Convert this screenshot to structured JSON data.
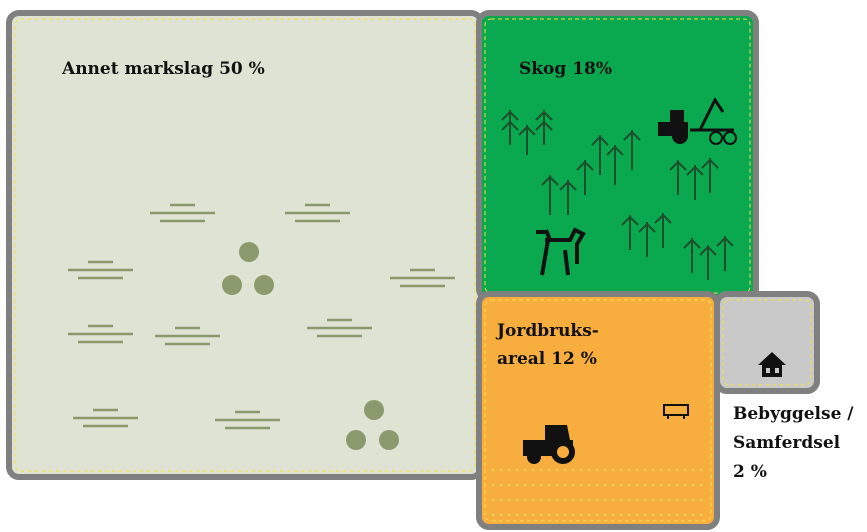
{
  "regions": [
    {
      "label_lines": [
        "Annet markslag 50 %"
      ]
    },
    {
      "label_lines": [
        "Skog 18%"
      ]
    },
    {
      "label_lines": [
        "Jordbruks-",
        "areal 12 %"
      ]
    },
    {
      "label_lines": [
        "Bebyggelse /",
        "Samferdsel",
        "2 %"
      ]
    }
  ]
}
